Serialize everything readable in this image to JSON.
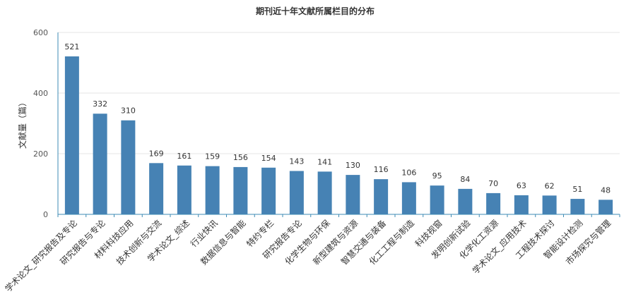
{
  "chart_data": {
    "type": "bar",
    "title": "期刊近十年文献所属栏目的分布",
    "xlabel": "",
    "ylabel": "文献量（篇）",
    "ylim": [
      0,
      600
    ],
    "yticks": [
      "0",
      "200",
      "400",
      "600"
    ],
    "grid": true,
    "legend": "none",
    "bar_color": "#4682b4",
    "categories": [
      "学术论文_研究报告及专论",
      "研究报告与专论",
      "材料科技应用",
      "技术创新与交流",
      "学术论文_综述",
      "行业快讯",
      "数据信息与智能",
      "特约专栏",
      "研究报告专论",
      "化学生物与环保",
      "新型建筑与资源",
      "智慧交通与装备",
      "化工工程与制造",
      "科技视窗",
      "发明创新试验",
      "化学化工资源",
      "学术论文_应用技术",
      "工程技术探讨",
      "智能设计检测",
      "市场探究与管理"
    ],
    "values": [
      521,
      332,
      310,
      169,
      161,
      159,
      156,
      154,
      143,
      141,
      130,
      116,
      106,
      95,
      84,
      70,
      63,
      62,
      51,
      48
    ],
    "value_labels": [
      "521",
      "332",
      "310",
      "169",
      "161",
      "159",
      "156",
      "154",
      "143",
      "141",
      "130",
      "116",
      "106",
      "95",
      "84",
      "70",
      "63",
      "62",
      "51",
      "48"
    ]
  }
}
